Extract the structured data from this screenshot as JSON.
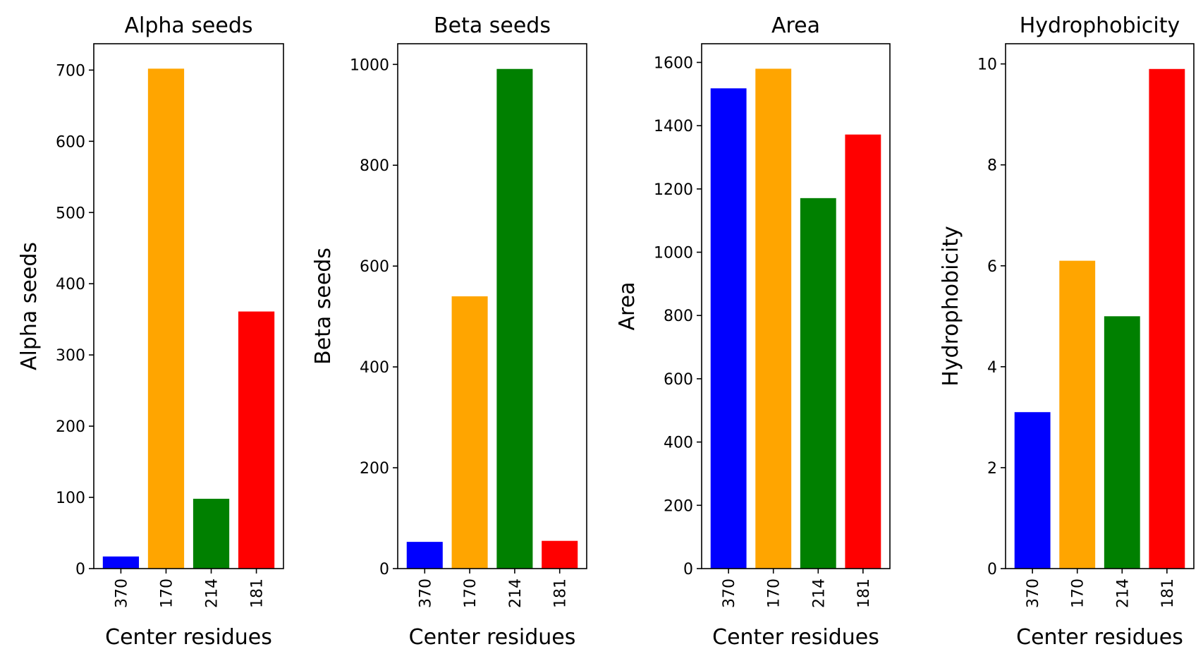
{
  "figure": {
    "background": "#ffffff"
  },
  "chart_data": [
    {
      "type": "bar",
      "title": "Alpha seeds",
      "xlabel": "Center residues",
      "ylabel": "Alpha seeds",
      "categories": [
        "370",
        "170",
        "214",
        "181"
      ],
      "values": [
        17,
        702,
        98,
        361
      ],
      "colors": [
        "#0000ff",
        "#ffa500",
        "#008000",
        "#ff0000"
      ],
      "ylim": [
        0,
        737
      ],
      "yticks": [
        0,
        100,
        200,
        300,
        400,
        500,
        600,
        700
      ],
      "grid": false,
      "legend": null
    },
    {
      "type": "bar",
      "title": "Beta seeds",
      "xlabel": "Center residues",
      "ylabel": "Beta seeds",
      "categories": [
        "370",
        "170",
        "214",
        "181"
      ],
      "values": [
        53,
        540,
        991,
        55
      ],
      "colors": [
        "#0000ff",
        "#ffa500",
        "#008000",
        "#ff0000"
      ],
      "ylim": [
        0,
        1041
      ],
      "yticks": [
        0,
        200,
        400,
        600,
        800,
        1000
      ],
      "grid": false,
      "legend": null
    },
    {
      "type": "bar",
      "title": "Area",
      "xlabel": "Center residues",
      "ylabel": "Area",
      "categories": [
        "370",
        "170",
        "214",
        "181"
      ],
      "values": [
        1518,
        1580,
        1171,
        1372
      ],
      "colors": [
        "#0000ff",
        "#ffa500",
        "#008000",
        "#ff0000"
      ],
      "ylim": [
        0,
        1659
      ],
      "yticks": [
        0,
        200,
        400,
        600,
        800,
        1000,
        1200,
        1400,
        1600
      ],
      "grid": false,
      "legend": null
    },
    {
      "type": "bar",
      "title": "Hydrophobicity",
      "xlabel": "Center residues",
      "ylabel": "Hydrophobicity",
      "categories": [
        "370",
        "170",
        "214",
        "181"
      ],
      "values": [
        3.1,
        6.1,
        5.0,
        9.9
      ],
      "colors": [
        "#0000ff",
        "#ffa500",
        "#008000",
        "#ff0000"
      ],
      "ylim": [
        0,
        10.4
      ],
      "yticks": [
        0,
        2,
        4,
        6,
        8,
        10
      ],
      "grid": false,
      "legend": null
    }
  ]
}
